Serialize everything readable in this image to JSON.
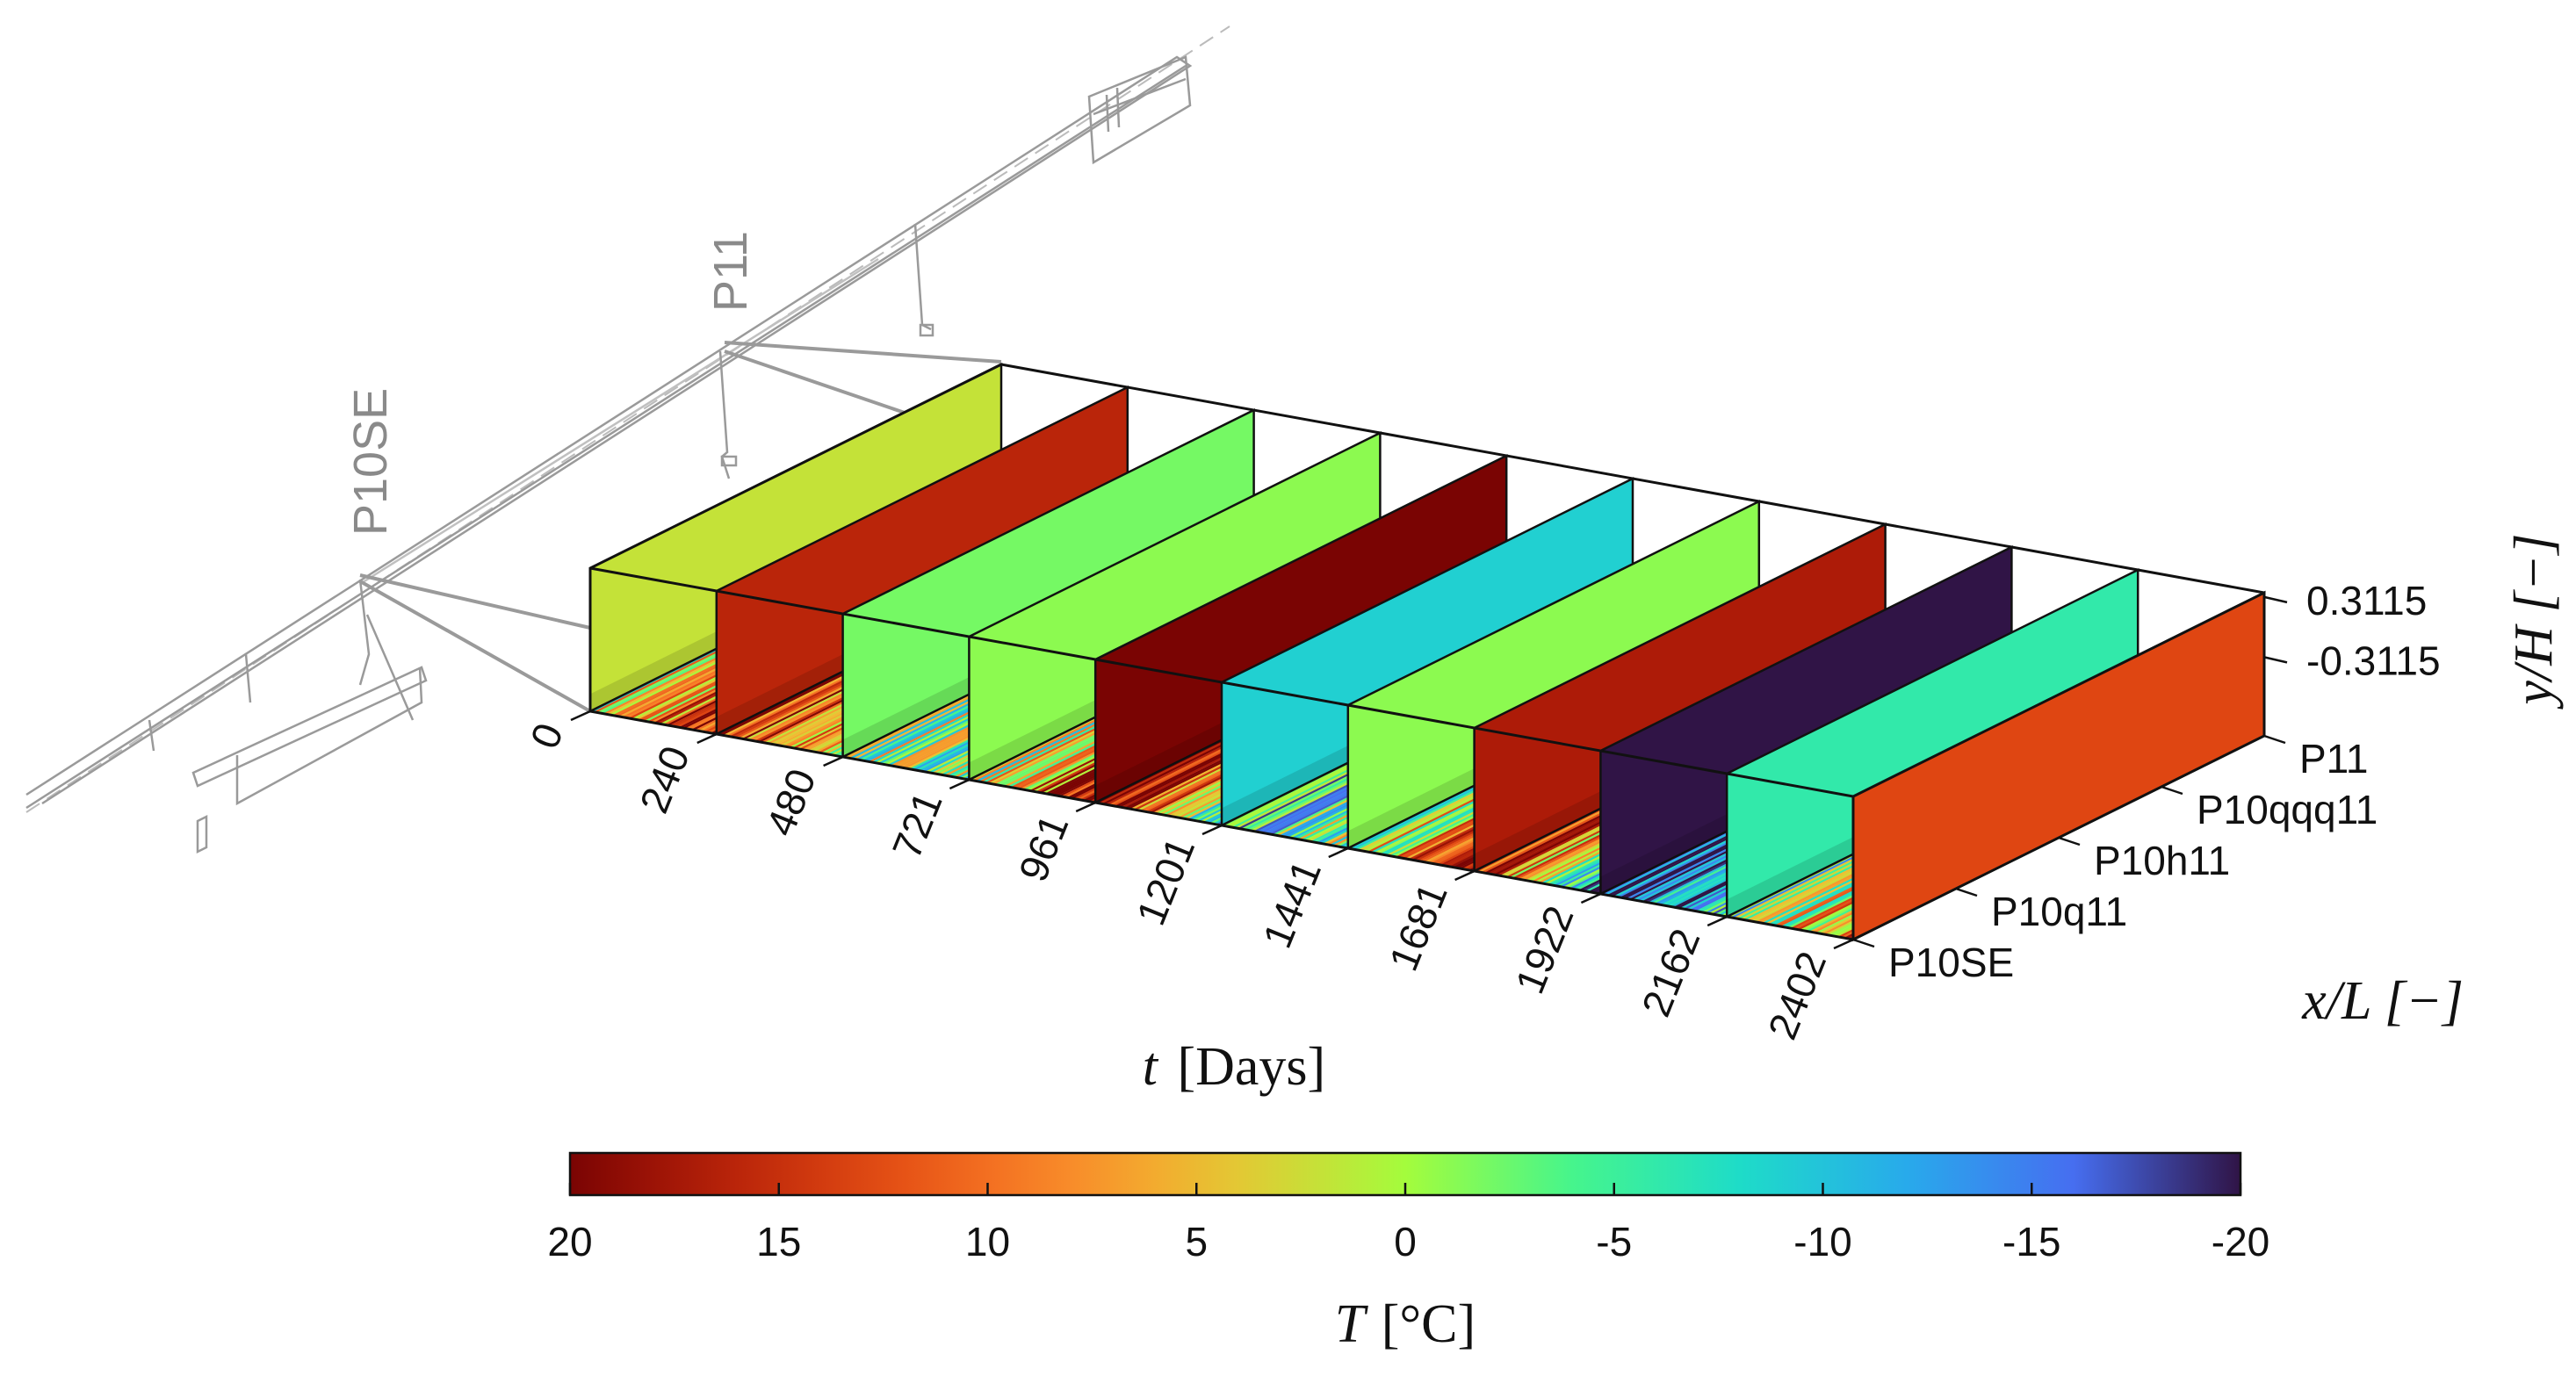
{
  "chart_data": {
    "type": "3d-heatmap",
    "colormap": "turbo",
    "t_axis": {
      "title_var": "t",
      "title_unit": "[Days]",
      "ticks": [
        "0",
        "240",
        "480",
        "721",
        "961",
        "1201",
        "1441",
        "1681",
        "1922",
        "2162",
        "2402"
      ]
    },
    "x_axis": {
      "title": "x/L [−]",
      "ticks": [
        "P10SE",
        "P10q11",
        "P10h11",
        "P10qqq11",
        "P11"
      ]
    },
    "y_axis": {
      "title": "y/H [−]",
      "ticks": [
        "0.3115",
        "-0.3115"
      ]
    },
    "snapshots": [
      {
        "t": 0,
        "T": 2
      },
      {
        "t": 240,
        "T": 16
      },
      {
        "t": 480,
        "T": -2
      },
      {
        "t": 721,
        "T": -1
      },
      {
        "t": 961,
        "T": 20
      },
      {
        "t": 1201,
        "T": -9
      },
      {
        "t": 1441,
        "T": -1
      },
      {
        "t": 1681,
        "T": 17
      },
      {
        "t": 1922,
        "T": -20
      },
      {
        "t": 2162,
        "T": -6
      },
      {
        "t": 2402,
        "T": 13
      }
    ],
    "colorbar": {
      "label_var": "T",
      "label_unit": "[°C]",
      "min": -20,
      "max": 20,
      "ticks": [
        "20",
        "15",
        "10",
        "5",
        "0",
        "-5",
        "-10",
        "-15",
        "-20"
      ]
    },
    "bridge_sections": [
      "P10SE",
      "P11"
    ]
  }
}
